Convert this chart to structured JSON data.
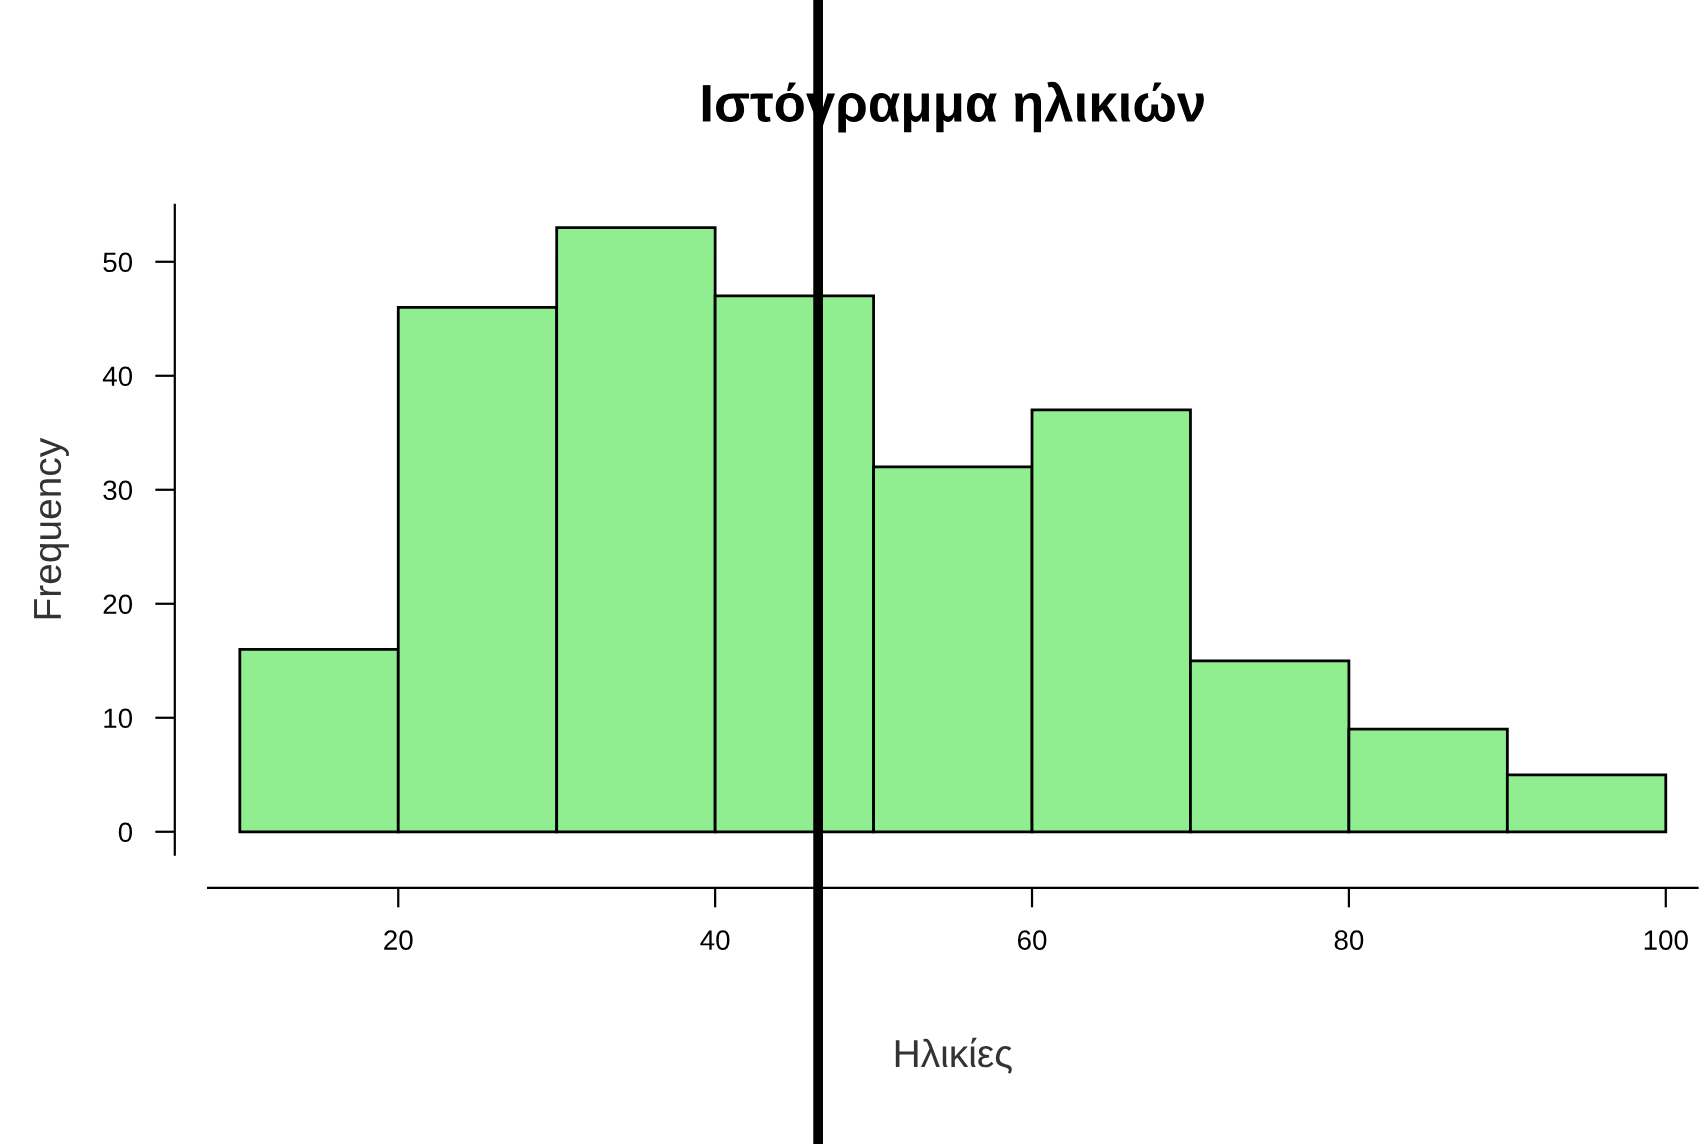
{
  "chart_data": {
    "type": "histogram",
    "title": "Ιστόγραμμα ηλικιών",
    "xlabel": "Ηλικίες",
    "ylabel": "Frequency",
    "bins": [
      10,
      20,
      30,
      40,
      50,
      60,
      70,
      80,
      90,
      100
    ],
    "values": [
      16,
      46,
      53,
      47,
      32,
      37,
      15,
      9,
      5
    ],
    "color": "#90ee90",
    "xlim": [
      8,
      102
    ],
    "ylim": [
      -2,
      55
    ],
    "xticks": [
      20,
      40,
      60,
      80,
      100
    ],
    "yticks": [
      0,
      10,
      20,
      30,
      40,
      50
    ],
    "ref_lines": [
      {
        "axis": "x",
        "value": 46.5,
        "color": "#000000"
      }
    ],
    "grid": false
  }
}
